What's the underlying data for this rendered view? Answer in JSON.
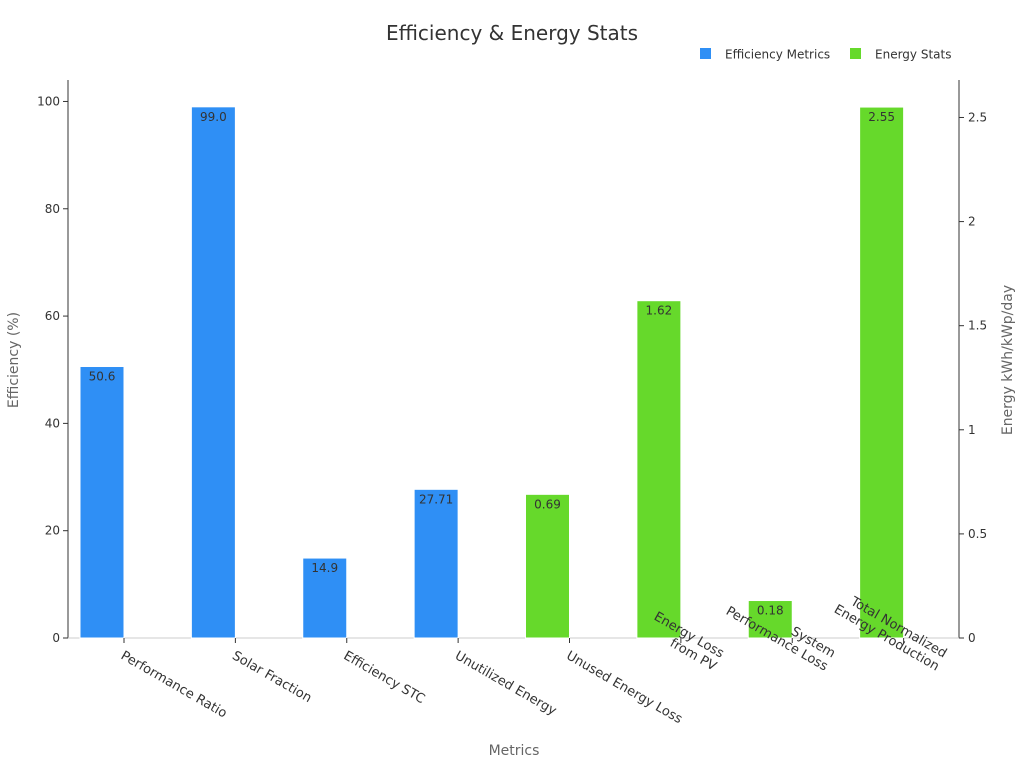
{
  "chart_data": {
    "type": "bar",
    "title": "Efficiency & Energy Stats",
    "xlabel": "Metrics",
    "ylabel_left": "Efficiency (%)",
    "ylabel_right": "Energy kWh/kWp/day",
    "ylim_left": [
      0,
      104
    ],
    "ylim_right": [
      0,
      2.68
    ],
    "yticks_left": [
      0,
      20,
      40,
      60,
      80,
      100
    ],
    "yticks_right": [
      0,
      0.5,
      1,
      1.5,
      2,
      2.5
    ],
    "legend_position": "top-right",
    "categories": [
      "Performance Ratio",
      "Solar Fraction",
      "Efficiency STC",
      "Unutilized Energy",
      "Unused Energy Loss",
      "Energy Loss\nfrom PV",
      "System\nPerformance Loss",
      "Total Normalized\nEnergy Production"
    ],
    "series": [
      {
        "name": "Efficiency Metrics",
        "axis": "left",
        "color": "#2f8ff5",
        "values": [
          50.6,
          99.0,
          14.9,
          27.71,
          null,
          null,
          null,
          null
        ],
        "labels": [
          "50.6",
          "99.0",
          "14.9",
          "27.71",
          "",
          "",
          "",
          ""
        ]
      },
      {
        "name": "Energy Stats",
        "axis": "right",
        "color": "#66d92b",
        "values": [
          null,
          null,
          null,
          null,
          0.69,
          1.62,
          0.18,
          2.55
        ],
        "labels": [
          "",
          "",
          "",
          "",
          "0.69",
          "1.62",
          "0.18",
          "2.55"
        ]
      }
    ]
  }
}
